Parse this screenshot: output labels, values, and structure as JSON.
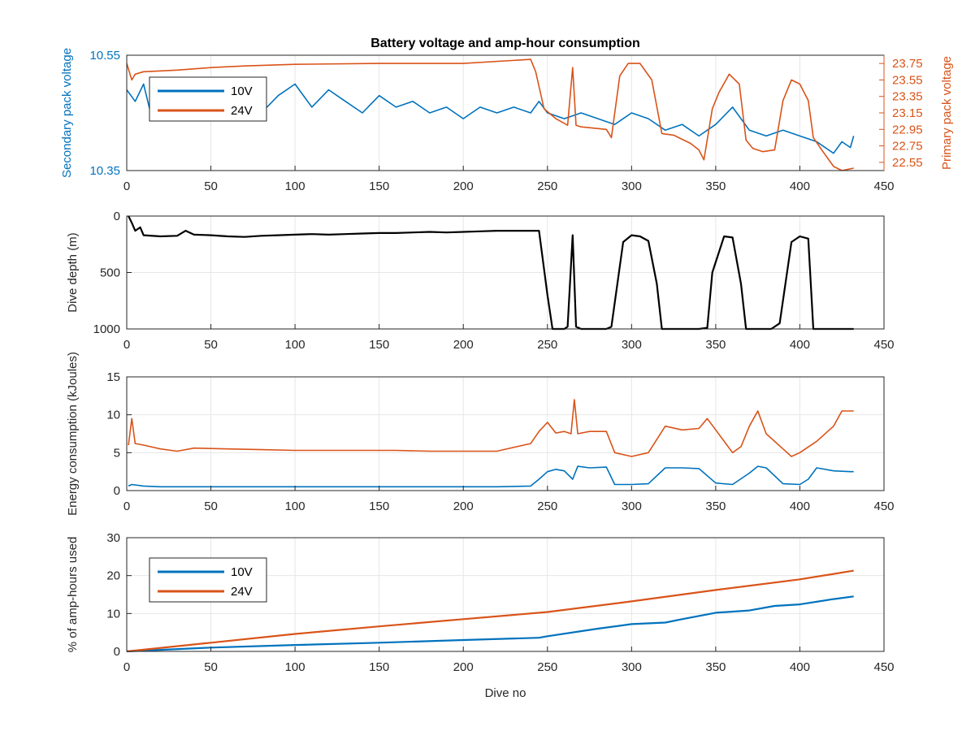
{
  "figure": {
    "title": "Battery voltage and amp-hour consumption",
    "xlabel": "Dive no"
  },
  "colors": {
    "s10V": "#0072BD",
    "s24V": "#D95319",
    "depth": "#000000",
    "grid": "#e6e6e6",
    "axis": "#262626"
  },
  "chart_data": [
    {
      "type": "line",
      "title": "Battery voltage and amp-hour consumption",
      "xlabel": "",
      "ylabel": "Secondary pack voltage",
      "ylabel_right": "Primary pack voltage",
      "xlim": [
        0,
        450
      ],
      "ylim": [
        10.35,
        10.55
      ],
      "ylim_right": [
        22.45,
        23.85
      ],
      "xticks": [
        "0",
        "50",
        "100",
        "150",
        "200",
        "250",
        "300",
        "350",
        "400",
        "450"
      ],
      "yticks": [
        "10.35",
        "10.55"
      ],
      "yticks_right": [
        "22.55",
        "22.75",
        "22.95",
        "23.15",
        "23.35",
        "23.55",
        "23.75"
      ],
      "grid": true,
      "legend": {
        "placement": "top-left",
        "entries": [
          "10V",
          "24V"
        ]
      },
      "series": [
        {
          "name": "10V",
          "axis": "left",
          "x": [
            0,
            5,
            10,
            15,
            20,
            25,
            30,
            40,
            50,
            60,
            70,
            80,
            90,
            100,
            110,
            120,
            130,
            140,
            150,
            160,
            170,
            180,
            190,
            200,
            210,
            220,
            230,
            240,
            245,
            250,
            260,
            270,
            280,
            290,
            300,
            310,
            320,
            330,
            340,
            350,
            360,
            370,
            380,
            390,
            400,
            410,
            420,
            425,
            430,
            432
          ],
          "y": [
            10.49,
            10.47,
            10.5,
            10.44,
            10.48,
            10.46,
            10.51,
            10.47,
            10.49,
            10.46,
            10.5,
            10.45,
            10.48,
            10.5,
            10.46,
            10.49,
            10.47,
            10.45,
            10.48,
            10.46,
            10.47,
            10.45,
            10.46,
            10.44,
            10.46,
            10.45,
            10.46,
            10.45,
            10.47,
            10.45,
            10.44,
            10.45,
            10.44,
            10.43,
            10.45,
            10.44,
            10.42,
            10.43,
            10.41,
            10.43,
            10.46,
            10.42,
            10.41,
            10.42,
            10.41,
            10.4,
            10.38,
            10.4,
            10.39,
            10.41
          ]
        },
        {
          "name": "24V",
          "axis": "right",
          "x": [
            0,
            3,
            5,
            10,
            30,
            50,
            70,
            100,
            150,
            200,
            240,
            243,
            248,
            255,
            262,
            265,
            267,
            270,
            285,
            288,
            293,
            298,
            305,
            312,
            318,
            325,
            335,
            340,
            343,
            348,
            352,
            358,
            364,
            368,
            372,
            378,
            385,
            390,
            395,
            400,
            405,
            408,
            413,
            420,
            425,
            432
          ],
          "y": [
            23.75,
            23.55,
            23.62,
            23.65,
            23.67,
            23.7,
            23.72,
            23.74,
            23.75,
            23.75,
            23.8,
            23.65,
            23.2,
            23.08,
            23.0,
            23.7,
            23.0,
            22.98,
            22.95,
            22.85,
            23.6,
            23.75,
            23.75,
            23.55,
            22.9,
            22.88,
            22.78,
            22.7,
            22.58,
            23.2,
            23.4,
            23.62,
            23.5,
            22.82,
            22.72,
            22.68,
            22.7,
            23.3,
            23.55,
            23.5,
            23.3,
            22.85,
            22.7,
            22.5,
            22.45,
            22.48
          ]
        }
      ]
    },
    {
      "type": "line",
      "ylabel": "Dive depth (m)",
      "xlim": [
        0,
        450
      ],
      "ylim": [
        1000,
        0
      ],
      "xticks": [
        "0",
        "50",
        "100",
        "150",
        "200",
        "250",
        "300",
        "350",
        "400",
        "450"
      ],
      "yticks": [
        "0",
        "500",
        "1000"
      ],
      "grid": true,
      "series": [
        {
          "x": [
            1,
            3,
            5,
            8,
            10,
            20,
            30,
            35,
            40,
            50,
            60,
            70,
            80,
            90,
            100,
            110,
            120,
            130,
            140,
            150,
            160,
            170,
            180,
            190,
            200,
            210,
            220,
            230,
            240,
            245,
            250,
            253,
            260,
            262,
            265,
            267,
            270,
            285,
            288,
            295,
            300,
            305,
            310,
            315,
            318,
            325,
            335,
            340,
            345,
            348,
            355,
            360,
            365,
            368,
            375,
            383,
            388,
            395,
            400,
            405,
            408,
            415,
            425,
            432
          ],
          "y": [
            0,
            60,
            130,
            100,
            170,
            180,
            175,
            130,
            165,
            170,
            180,
            185,
            175,
            170,
            165,
            160,
            165,
            160,
            155,
            150,
            150,
            145,
            140,
            145,
            140,
            135,
            130,
            130,
            130,
            130,
            700,
            1000,
            1000,
            980,
            170,
            980,
            1000,
            1000,
            980,
            230,
            170,
            180,
            220,
            600,
            1000,
            1000,
            1000,
            1000,
            990,
            500,
            180,
            190,
            600,
            1000,
            1000,
            1000,
            950,
            230,
            180,
            200,
            1000,
            1000,
            1000,
            1000
          ]
        }
      ]
    },
    {
      "type": "line",
      "ylabel": "Energy consumption (kJoules)",
      "xlim": [
        0,
        450
      ],
      "ylim": [
        0,
        15
      ],
      "xticks": [
        "0",
        "50",
        "100",
        "150",
        "200",
        "250",
        "300",
        "350",
        "400",
        "450"
      ],
      "yticks": [
        "0",
        "5",
        "10",
        "15"
      ],
      "grid": true,
      "series": [
        {
          "name": "10V",
          "x": [
            1,
            3,
            10,
            20,
            30,
            40,
            60,
            80,
            100,
            120,
            140,
            160,
            180,
            200,
            220,
            240,
            245,
            250,
            255,
            260,
            265,
            268,
            275,
            285,
            290,
            300,
            310,
            320,
            330,
            340,
            350,
            360,
            370,
            375,
            380,
            390,
            400,
            405,
            410,
            420,
            430,
            432
          ],
          "y": [
            0.6,
            0.8,
            0.6,
            0.5,
            0.5,
            0.5,
            0.5,
            0.5,
            0.5,
            0.5,
            0.5,
            0.5,
            0.5,
            0.5,
            0.5,
            0.6,
            1.5,
            2.5,
            2.8,
            2.6,
            1.5,
            3.2,
            3.0,
            3.1,
            0.8,
            0.8,
            0.9,
            3.0,
            3.0,
            2.9,
            1.0,
            0.8,
            2.3,
            3.2,
            3.0,
            0.9,
            0.8,
            1.5,
            3.0,
            2.6,
            2.5,
            2.5
          ]
        },
        {
          "name": "24V",
          "x": [
            1,
            3,
            5,
            10,
            20,
            30,
            40,
            60,
            80,
            100,
            120,
            140,
            160,
            180,
            200,
            220,
            240,
            245,
            250,
            255,
            260,
            264,
            266,
            268,
            275,
            285,
            290,
            300,
            310,
            320,
            330,
            340,
            345,
            350,
            360,
            365,
            370,
            375,
            380,
            390,
            395,
            400,
            410,
            420,
            425,
            432
          ],
          "y": [
            6,
            9.5,
            6.2,
            6,
            5.5,
            5.2,
            5.6,
            5.5,
            5.4,
            5.3,
            5.3,
            5.3,
            5.3,
            5.2,
            5.2,
            5.2,
            6.2,
            7.8,
            9.0,
            7.6,
            7.8,
            7.5,
            12.0,
            7.5,
            7.8,
            7.8,
            5.0,
            4.5,
            5.0,
            8.5,
            8.0,
            8.2,
            9.5,
            8.0,
            5.0,
            5.8,
            8.5,
            10.5,
            7.5,
            5.5,
            4.5,
            5.0,
            6.5,
            8.5,
            10.5,
            10.5
          ]
        }
      ]
    },
    {
      "type": "line",
      "ylabel": "% of amp-hours used",
      "xlabel": "Dive no",
      "xlim": [
        0,
        450
      ],
      "ylim": [
        0,
        30
      ],
      "xticks": [
        "0",
        "50",
        "100",
        "150",
        "200",
        "250",
        "300",
        "350",
        "400",
        "450"
      ],
      "yticks": [
        "0",
        "10",
        "20",
        "30"
      ],
      "grid": true,
      "legend": {
        "placement": "top-left",
        "entries": [
          "10V",
          "24V"
        ]
      },
      "series": [
        {
          "name": "10V",
          "x": [
            0,
            50,
            100,
            150,
            200,
            245,
            250,
            280,
            300,
            320,
            330,
            350,
            370,
            385,
            400,
            420,
            432
          ],
          "y": [
            0,
            1.0,
            1.7,
            2.3,
            3.0,
            3.6,
            4.0,
            6.0,
            7.2,
            7.6,
            8.5,
            10.2,
            10.8,
            12.0,
            12.4,
            13.8,
            14.5
          ]
        },
        {
          "name": "24V",
          "x": [
            0,
            50,
            100,
            150,
            200,
            250,
            300,
            350,
            400,
            432
          ],
          "y": [
            0,
            2.3,
            4.6,
            6.6,
            8.5,
            10.4,
            13.2,
            16.2,
            19.0,
            21.3
          ]
        }
      ]
    }
  ]
}
